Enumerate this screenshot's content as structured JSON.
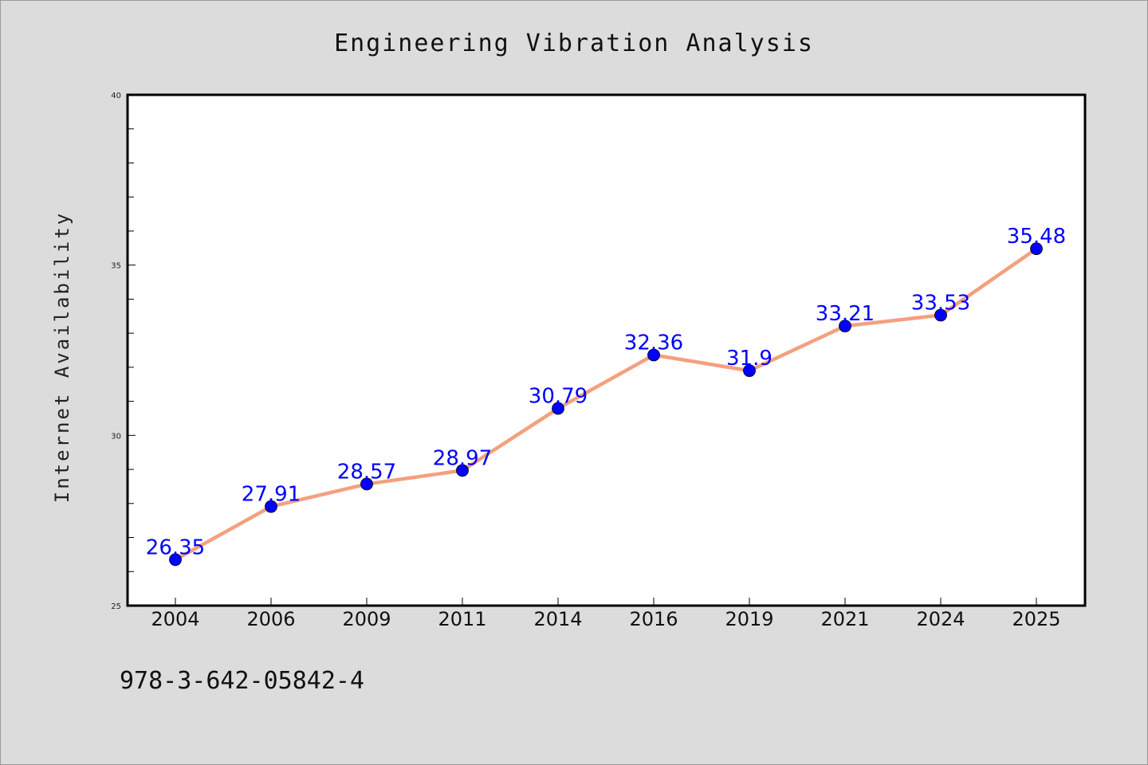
{
  "chart_data": {
    "type": "line",
    "title": "Engineering Vibration Analysis",
    "xlabel": "",
    "ylabel": "Internet Availability",
    "categories": [
      "2004",
      "2006",
      "2009",
      "2011",
      "2014",
      "2016",
      "2019",
      "2021",
      "2024",
      "2025"
    ],
    "series": [
      {
        "values": [
          26.35,
          27.91,
          28.57,
          28.97,
          30.79,
          32.36,
          31.9,
          33.21,
          33.53,
          35.48
        ],
        "data_labels": [
          "26.35",
          "27.91",
          "28.57",
          "28.97",
          "30.79",
          "32.36",
          "31.9",
          "33.21",
          "33.53",
          "35.48"
        ]
      }
    ],
    "ylim": [
      25,
      40
    ],
    "y_ticks": [
      "25",
      "30",
      "35",
      "40"
    ],
    "grid": false,
    "legend": "none",
    "line_color": "#f4a07e",
    "marker_color": "#0000ff",
    "label_color": "#0000ff"
  },
  "footer": {
    "isbn": "978-3-642-05842-4"
  }
}
